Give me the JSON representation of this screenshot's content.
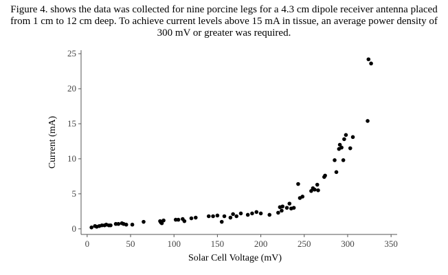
{
  "caption": "Figure 4. shows the data was collected for nine porcine legs for a 4.3 cm dipole receiver antenna placed from 1 cm to 12 cm deep. To achieve current levels above 15 mA in tissue, an average power density of 300 mV or greater was required.",
  "chart_data": {
    "type": "scatter",
    "title": "",
    "xlabel": "Solar Cell Voltage (mV)",
    "ylabel": "Current (mA)",
    "xlim": [
      -7,
      357
    ],
    "ylim": [
      -0.8,
      25.5
    ],
    "xticks": [
      0,
      50,
      100,
      150,
      200,
      250,
      300,
      350
    ],
    "yticks": [
      0,
      5,
      10,
      15,
      20,
      25
    ],
    "grid": false,
    "marker_color": "#000000",
    "points": [
      [
        5,
        0.2
      ],
      [
        9,
        0.4
      ],
      [
        11,
        0.3
      ],
      [
        14,
        0.4
      ],
      [
        17,
        0.5
      ],
      [
        20,
        0.5
      ],
      [
        22,
        0.6
      ],
      [
        25,
        0.5
      ],
      [
        27,
        0.5
      ],
      [
        33,
        0.7
      ],
      [
        36,
        0.7
      ],
      [
        40,
        0.8
      ],
      [
        42,
        0.7
      ],
      [
        45,
        0.6
      ],
      [
        52,
        0.6
      ],
      [
        65,
        1.0
      ],
      [
        84,
        1.1
      ],
      [
        85,
        0.9
      ],
      [
        86,
        0.8
      ],
      [
        88,
        1.2
      ],
      [
        102,
        1.3
      ],
      [
        105,
        1.3
      ],
      [
        110,
        1.4
      ],
      [
        112,
        1.1
      ],
      [
        120,
        1.5
      ],
      [
        125,
        1.6
      ],
      [
        140,
        1.8
      ],
      [
        145,
        1.8
      ],
      [
        150,
        1.9
      ],
      [
        155,
        1.0
      ],
      [
        158,
        1.8
      ],
      [
        165,
        1.6
      ],
      [
        168,
        2.1
      ],
      [
        172,
        1.8
      ],
      [
        177,
        2.2
      ],
      [
        185,
        2.0
      ],
      [
        190,
        2.2
      ],
      [
        195,
        2.4
      ],
      [
        200,
        2.2
      ],
      [
        210,
        2.0
      ],
      [
        220,
        2.3
      ],
      [
        222,
        3.1
      ],
      [
        224,
        2.6
      ],
      [
        225,
        3.2
      ],
      [
        230,
        3.0
      ],
      [
        233,
        3.6
      ],
      [
        235,
        2.9
      ],
      [
        238,
        3.0
      ],
      [
        243,
        6.4
      ],
      [
        245,
        4.4
      ],
      [
        248,
        4.6
      ],
      [
        258,
        5.4
      ],
      [
        260,
        5.8
      ],
      [
        262,
        5.6
      ],
      [
        265,
        6.3
      ],
      [
        266,
        5.5
      ],
      [
        273,
        7.4
      ],
      [
        274,
        7.6
      ],
      [
        285,
        9.8
      ],
      [
        287,
        8.1
      ],
      [
        290,
        11.4
      ],
      [
        291,
        12.0
      ],
      [
        293,
        11.6
      ],
      [
        295,
        9.8
      ],
      [
        296,
        12.8
      ],
      [
        298,
        13.4
      ],
      [
        303,
        11.5
      ],
      [
        306,
        13.1
      ],
      [
        323,
        15.4
      ],
      [
        324,
        24.2
      ],
      [
        327,
        23.6
      ]
    ]
  }
}
